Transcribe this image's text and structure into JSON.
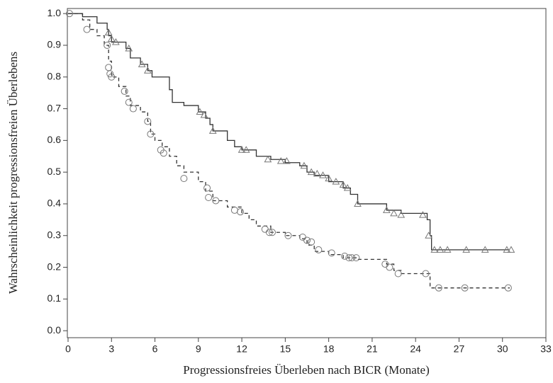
{
  "chart_data": {
    "type": "km",
    "xlabel": "Progressionsfreies Überleben nach BICR (Monate)",
    "ylabel": "Wahrscheinlichkeit progressionsfreien Überlebens",
    "xlim": [
      0,
      33
    ],
    "xticks": [
      0,
      3,
      6,
      9,
      12,
      15,
      18,
      21,
      24,
      27,
      30,
      33
    ],
    "ylim": [
      -0.022,
      1.016
    ],
    "yticks": [
      {
        "value": 0,
        "label": "0.0"
      },
      0.1,
      0.2,
      0.3,
      0.4,
      0.5,
      0.6,
      0.7,
      0.8,
      0.9,
      {
        "value": 1,
        "label": "1.0"
      }
    ],
    "series": [
      {
        "color": "#333333",
        "style": "solid",
        "marker": "triangle",
        "x": [
          0,
          1,
          2,
          2.7,
          2.8,
          3,
          4,
          4.3,
          5,
          5.5,
          5.8,
          7,
          7.2,
          8,
          9,
          9.5,
          9.8,
          10,
          11,
          11.5,
          12,
          13,
          14,
          15,
          16,
          16.5,
          17,
          18,
          19,
          19.5,
          20,
          22,
          23,
          24.8,
          25,
          25.1,
          30.5
        ],
        "values": [
          1.0,
          0.99,
          0.97,
          0.95,
          0.93,
          0.91,
          0.89,
          0.86,
          0.84,
          0.82,
          0.8,
          0.76,
          0.72,
          0.71,
          0.69,
          0.67,
          0.65,
          0.63,
          0.6,
          0.58,
          0.57,
          0.55,
          0.54,
          0.53,
          0.52,
          0.5,
          0.49,
          0.47,
          0.45,
          0.43,
          0.4,
          0.38,
          0.37,
          0.35,
          0.3,
          0.255,
          0.255
        ],
        "censor_x": [
          2.8,
          3.0,
          3.3,
          4.2,
          5.1,
          5.5,
          9.1,
          9.4,
          10.0,
          12.0,
          12.3,
          13.8,
          14.7,
          15.1,
          16.3,
          16.8,
          17.2,
          17.6,
          18.0,
          18.5,
          19.0,
          19.3,
          20.0,
          22.0,
          22.5,
          23.0,
          24.5,
          24.9,
          25.3,
          25.7,
          26.2,
          27.5,
          28.8,
          30.3,
          30.6
        ],
        "censor_y": [
          0.94,
          0.92,
          0.91,
          0.89,
          0.84,
          0.82,
          0.69,
          0.68,
          0.63,
          0.57,
          0.57,
          0.54,
          0.535,
          0.535,
          0.52,
          0.5,
          0.495,
          0.49,
          0.48,
          0.47,
          0.46,
          0.45,
          0.4,
          0.38,
          0.37,
          0.365,
          0.365,
          0.3,
          0.255,
          0.255,
          0.255,
          0.255,
          0.255,
          0.255,
          0.255
        ]
      },
      {
        "color": "#333333",
        "style": "dashed",
        "marker": "circle",
        "x": [
          0,
          1,
          1.5,
          2,
          2.5,
          2.8,
          3,
          3.5,
          4,
          4.3,
          5,
          5.5,
          5.7,
          6,
          6.5,
          7,
          7.5,
          8,
          9,
          9.5,
          10,
          11,
          12,
          12.5,
          13,
          14,
          15,
          16,
          16.5,
          17,
          18,
          19,
          20,
          22,
          22.5,
          23,
          25,
          30.5
        ],
        "values": [
          1.0,
          0.98,
          0.95,
          0.93,
          0.9,
          0.85,
          0.8,
          0.77,
          0.74,
          0.71,
          0.69,
          0.66,
          0.62,
          0.6,
          0.58,
          0.55,
          0.52,
          0.5,
          0.47,
          0.44,
          0.41,
          0.39,
          0.37,
          0.35,
          0.33,
          0.31,
          0.3,
          0.29,
          0.27,
          0.25,
          0.24,
          0.23,
          0.225,
          0.21,
          0.19,
          0.18,
          0.135,
          0.135
        ],
        "censor_x": [
          0.1,
          1.3,
          2.7,
          2.8,
          2.9,
          3.0,
          3.9,
          4.2,
          4.5,
          5.5,
          5.7,
          6.4,
          6.6,
          8.0,
          9.6,
          9.7,
          10.2,
          11.5,
          11.9,
          13.6,
          13.9,
          14.1,
          15.2,
          16.2,
          16.5,
          16.8,
          17.3,
          18.2,
          19.1,
          19.4,
          19.6,
          19.9,
          21.9,
          22.2,
          22.8,
          24.7,
          25.6,
          27.4,
          30.4
        ],
        "censor_y": [
          1.0,
          0.95,
          0.9,
          0.83,
          0.81,
          0.8,
          0.755,
          0.72,
          0.7,
          0.66,
          0.62,
          0.57,
          0.56,
          0.48,
          0.45,
          0.42,
          0.41,
          0.38,
          0.375,
          0.32,
          0.31,
          0.31,
          0.3,
          0.295,
          0.285,
          0.28,
          0.255,
          0.245,
          0.235,
          0.23,
          0.23,
          0.23,
          0.21,
          0.2,
          0.18,
          0.18,
          0.135,
          0.135,
          0.135
        ]
      }
    ]
  }
}
